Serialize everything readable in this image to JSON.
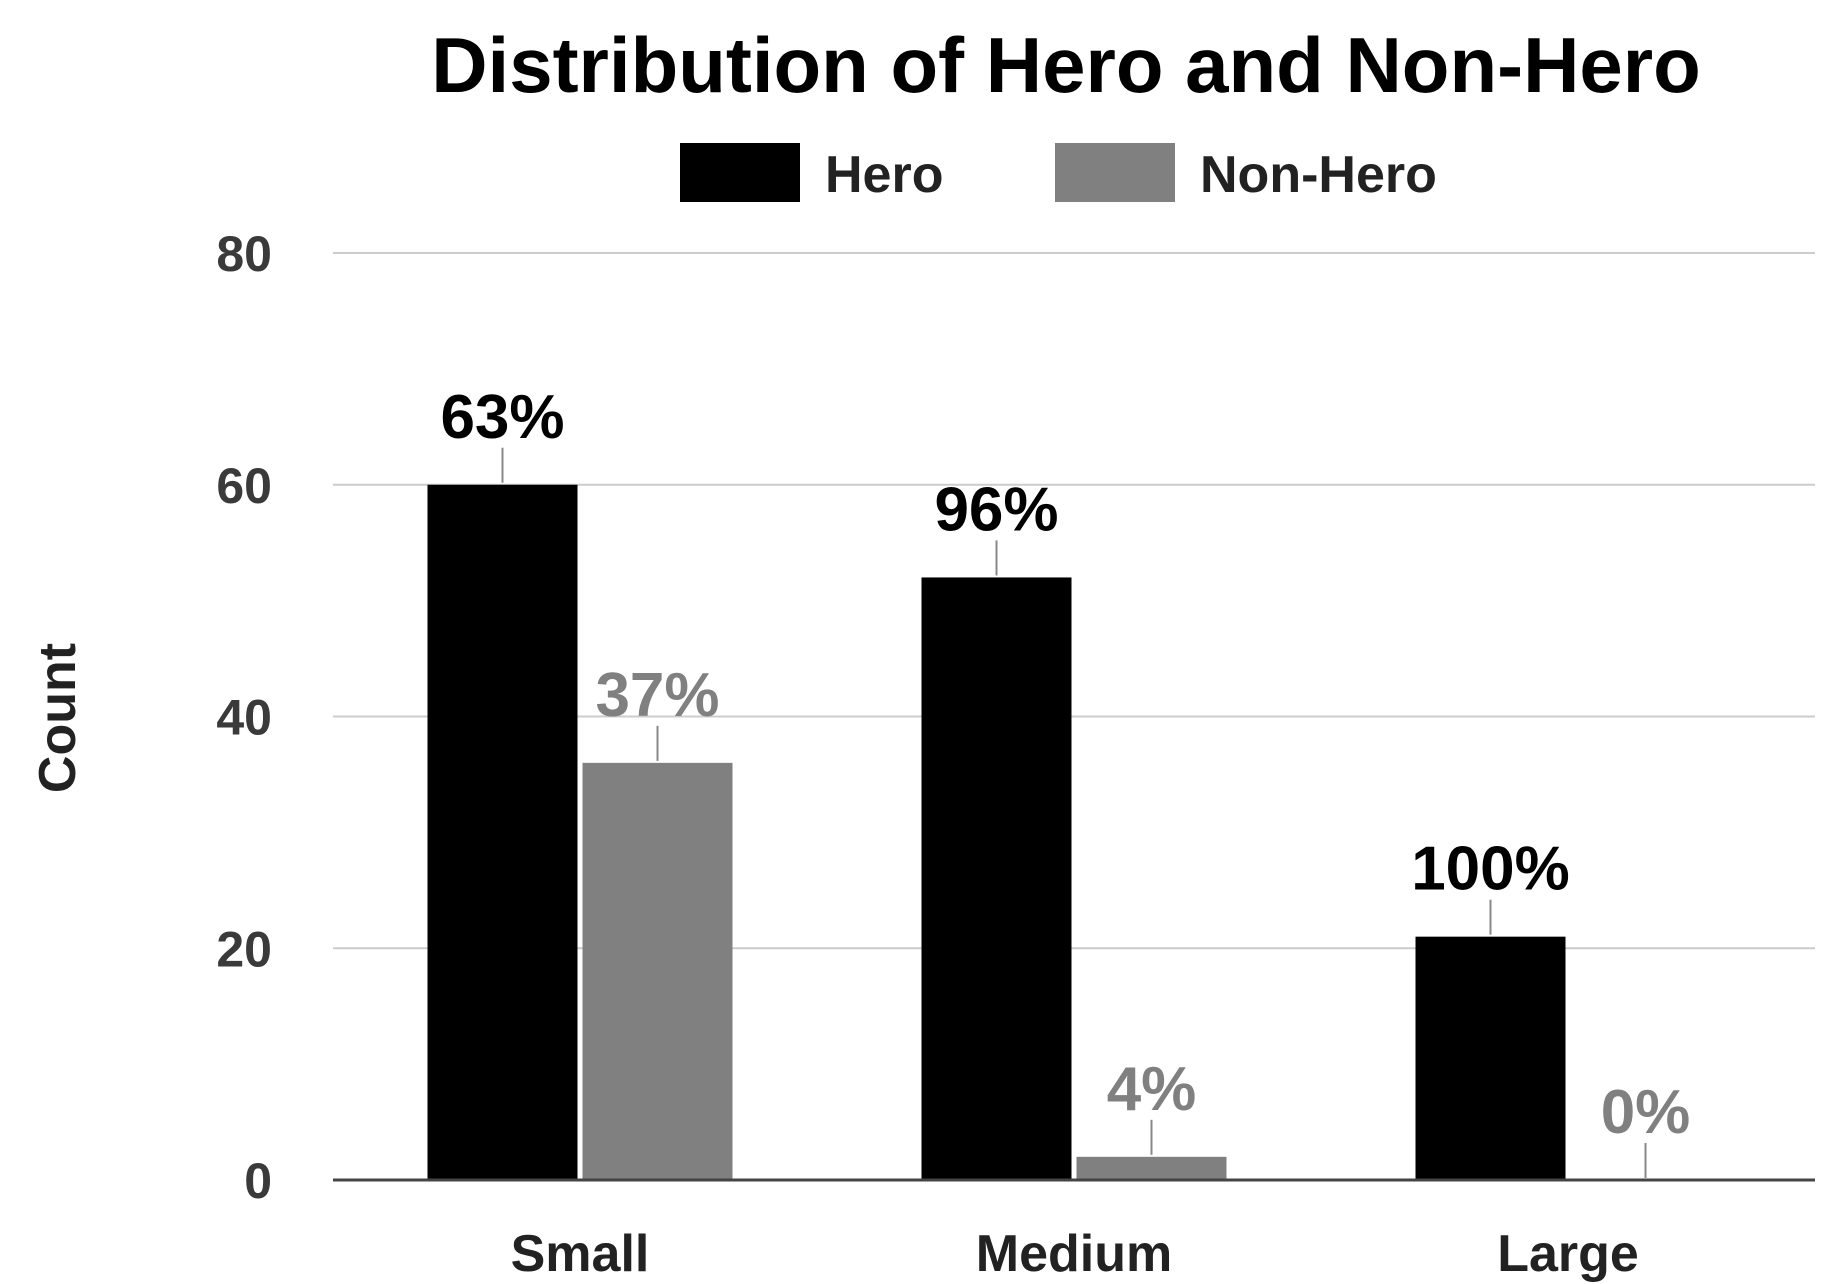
{
  "chart_data": {
    "type": "bar",
    "title": "Distribution of Hero and Non-Hero",
    "ylabel": "Count",
    "xlabel": "",
    "categories": [
      "Small",
      "Medium",
      "Large"
    ],
    "ylim": [
      0,
      80
    ],
    "yticks": [
      0,
      20,
      40,
      60,
      80
    ],
    "ytick_labels": [
      "0",
      "20",
      "40",
      "60",
      "80"
    ],
    "grid": true,
    "legend_position": "top-center",
    "series": [
      {
        "name": "Hero",
        "color": "#000000",
        "label_color": "#000000",
        "values": [
          60,
          52,
          21
        ],
        "data_labels": [
          "63%",
          "96%",
          "100%"
        ]
      },
      {
        "name": "Non-Hero",
        "color": "#808080",
        "label_color": "#808080",
        "values": [
          36,
          2,
          0
        ],
        "data_labels": [
          "37%",
          "4%",
          "0%"
        ]
      }
    ]
  }
}
